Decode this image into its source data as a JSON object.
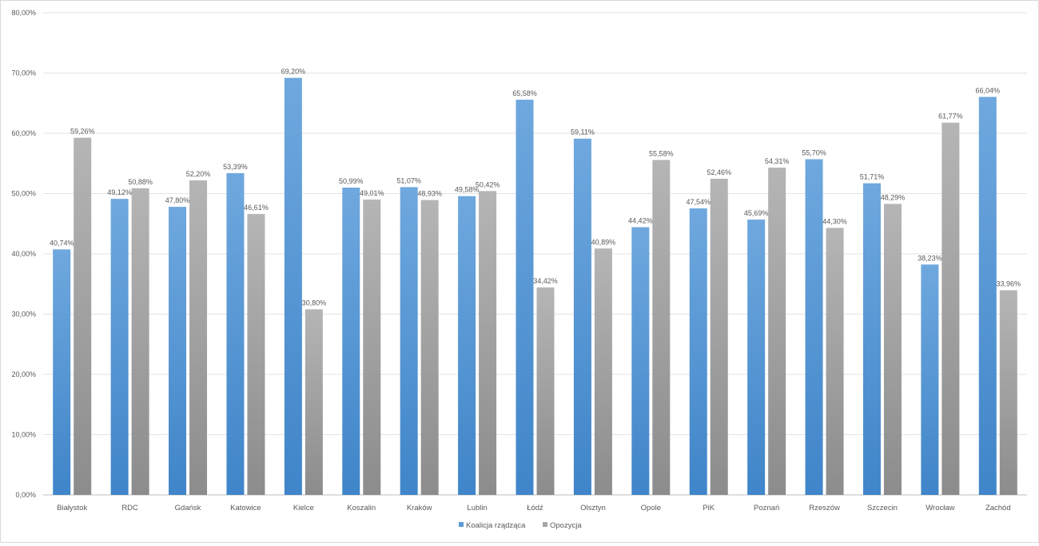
{
  "chart_data": {
    "type": "bar",
    "title": "",
    "xlabel": "",
    "ylabel": "",
    "ylim": [
      0,
      0.8
    ],
    "ytick_values": [
      0,
      0.1,
      0.2,
      0.3,
      0.4,
      0.5,
      0.6,
      0.7,
      0.8
    ],
    "ytick_labels": [
      "0,00%",
      "10,00%",
      "20,00%",
      "30,00%",
      "40,00%",
      "50,00%",
      "60,00%",
      "70,00%",
      "80,00%"
    ],
    "grid": true,
    "legend_position": "bottom",
    "categories": [
      "Białystok",
      "RDC",
      "Gdańsk",
      "Katowice",
      "Kielce",
      "Koszalin",
      "Kraków",
      "Lublin",
      "Łódź",
      "Olsztyn",
      "Opole",
      "PiK",
      "Poznań",
      "Rzeszów",
      "Szczecin",
      "Wrocław",
      "Zachód"
    ],
    "series": [
      {
        "name": "Koalicja rządząca",
        "color": "#5b9bd5",
        "values": [
          0.4074,
          0.4912,
          0.478,
          0.5339,
          0.692,
          0.5099,
          0.5107,
          0.4958,
          0.6558,
          0.5911,
          0.4442,
          0.4754,
          0.4569,
          0.557,
          0.5171,
          0.3823,
          0.6604
        ],
        "labels": [
          "40,74%",
          "49,12%",
          "47,80%",
          "53,39%",
          "69,20%",
          "50,99%",
          "51,07%",
          "49,58%",
          "65,58%",
          "59,11%",
          "44,42%",
          "47,54%",
          "45,69%",
          "55,70%",
          "51,71%",
          "38,23%",
          "66,04%"
        ]
      },
      {
        "name": "Opozycja",
        "color": "#a5a5a5",
        "values": [
          0.5926,
          0.5088,
          0.522,
          0.4661,
          0.308,
          0.4901,
          0.4893,
          0.5042,
          0.3442,
          0.4089,
          0.5558,
          0.5246,
          0.5431,
          0.443,
          0.4829,
          0.6177,
          0.3396
        ],
        "labels": [
          "59,26%",
          "50,88%",
          "52,20%",
          "46,61%",
          "30,80%",
          "49,01%",
          "48,93%",
          "50,42%",
          "34,42%",
          "40,89%",
          "55,58%",
          "52,46%",
          "54,31%",
          "44,30%",
          "48,29%",
          "61,77%",
          "33,96%"
        ]
      }
    ]
  }
}
